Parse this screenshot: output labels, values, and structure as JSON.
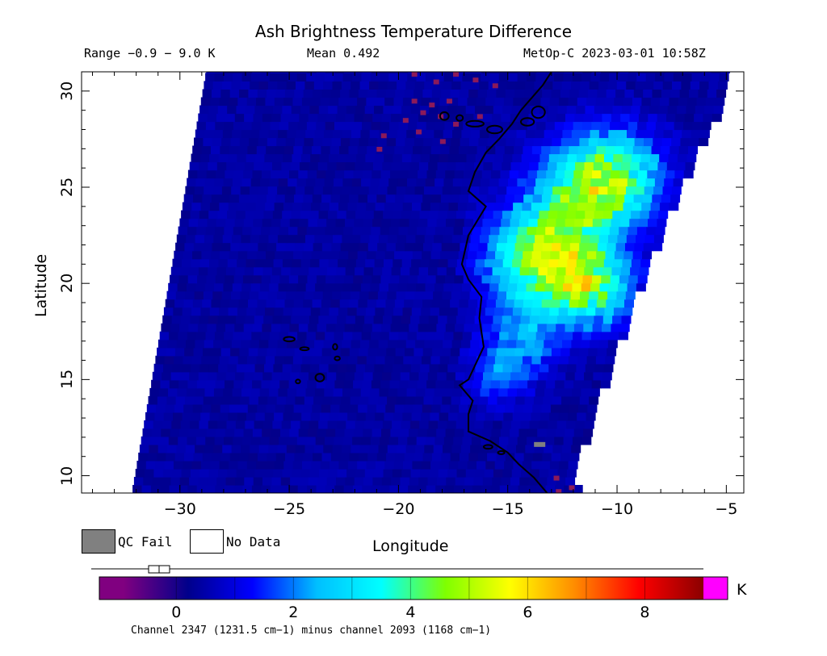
{
  "chart_data": {
    "type": "heatmap",
    "title": "Ash Brightness Temperature Difference",
    "range_text": "Range −0.9 − 9.0 K",
    "mean_text": "Mean 0.492",
    "satellite_text": "MetOp-C 2023-03-01 10:58Z",
    "xlabel": "Longitude",
    "ylabel": "Latitude",
    "xlim": [
      -34.5,
      -4.2
    ],
    "ylim": [
      9.1,
      31.0
    ],
    "x_ticks": [
      -30,
      -25,
      -20,
      -15,
      -10,
      -5
    ],
    "x_tick_labels": [
      "−30",
      "−25",
      "−20",
      "−15",
      "−10",
      "−5"
    ],
    "y_ticks": [
      10,
      15,
      20,
      25,
      30
    ],
    "y_tick_labels": [
      "10",
      "15",
      "20",
      "25",
      "30"
    ],
    "swath_edges": {
      "west": [
        [
          -32.2,
          9.1
        ],
        [
          -28.8,
          31.0
        ]
      ],
      "east": [
        [
          -11.5,
          9.1
        ],
        [
          -12.2,
          10.0
        ],
        [
          -9.0,
          20.0
        ],
        [
          -7.2,
          25.0
        ],
        [
          -5.2,
          29.5
        ],
        [
          -4.9,
          31.0
        ]
      ]
    },
    "background_value": 0.4,
    "hotspots": [
      {
        "lon": -10.5,
        "lat": 25.5,
        "value": 4.6,
        "spread": 2.4
      },
      {
        "lon": -11.5,
        "lat": 19.8,
        "value": 4.4,
        "spread": 2.0
      },
      {
        "lon": -14.0,
        "lat": 21.0,
        "value": 3.2,
        "spread": 2.2
      },
      {
        "lon": -12.5,
        "lat": 23.0,
        "value": 3.0,
        "spread": 2.5
      },
      {
        "lon": -14.5,
        "lat": 17.0,
        "value": 2.2,
        "spread": 1.8
      },
      {
        "lon": -15.5,
        "lat": 15.0,
        "value": 1.6,
        "spread": 1.3
      }
    ],
    "negative_pixels": [
      [
        -19.4,
        30.8
      ],
      [
        -18.4,
        30.4
      ],
      [
        -17.5,
        30.8
      ],
      [
        -16.6,
        30.5
      ],
      [
        -15.7,
        30.2
      ],
      [
        -19.4,
        29.4
      ],
      [
        -18.6,
        29.2
      ],
      [
        -17.8,
        29.4
      ],
      [
        -19.0,
        28.8
      ],
      [
        -18.2,
        28.6
      ],
      [
        -17.5,
        28.2
      ],
      [
        -19.2,
        27.8
      ],
      [
        -19.8,
        28.4
      ],
      [
        -16.4,
        28.6
      ],
      [
        -20.8,
        27.6
      ],
      [
        -18.1,
        27.3
      ],
      [
        -21.0,
        26.9
      ],
      [
        -12.9,
        9.8
      ],
      [
        -12.2,
        9.3
      ],
      [
        -12.8,
        9.1
      ]
    ],
    "qc_fail_pixels": [
      [
        -13.8,
        11.6
      ]
    ],
    "coastline_note": "West Africa coast, Canary and Cape Verde islands",
    "colorbar": {
      "min": -0.9,
      "max": 9.0,
      "ticks": [
        0,
        2,
        4,
        6,
        8
      ],
      "tick_labels": [
        "0",
        "2",
        "4",
        "6",
        "8"
      ],
      "unit": "K",
      "stops": [
        "#800080",
        "#00008b",
        "#0000ff",
        "#00bfff",
        "#00ffff",
        "#7fff00",
        "#ffff00",
        "#ff8c00",
        "#ff0000",
        "#8b0000"
      ],
      "under_color": "#800080",
      "over_color": "#ff00ff"
    },
    "legend": {
      "qc_fail_label": "QC Fail",
      "no_data_label": "No Data",
      "qc_fail_color": "#808080",
      "no_data_color": "#ffffff"
    },
    "caption": "Channel 2347 (1231.5 cm−1) minus channel 2093 (1168 cm−1)"
  }
}
